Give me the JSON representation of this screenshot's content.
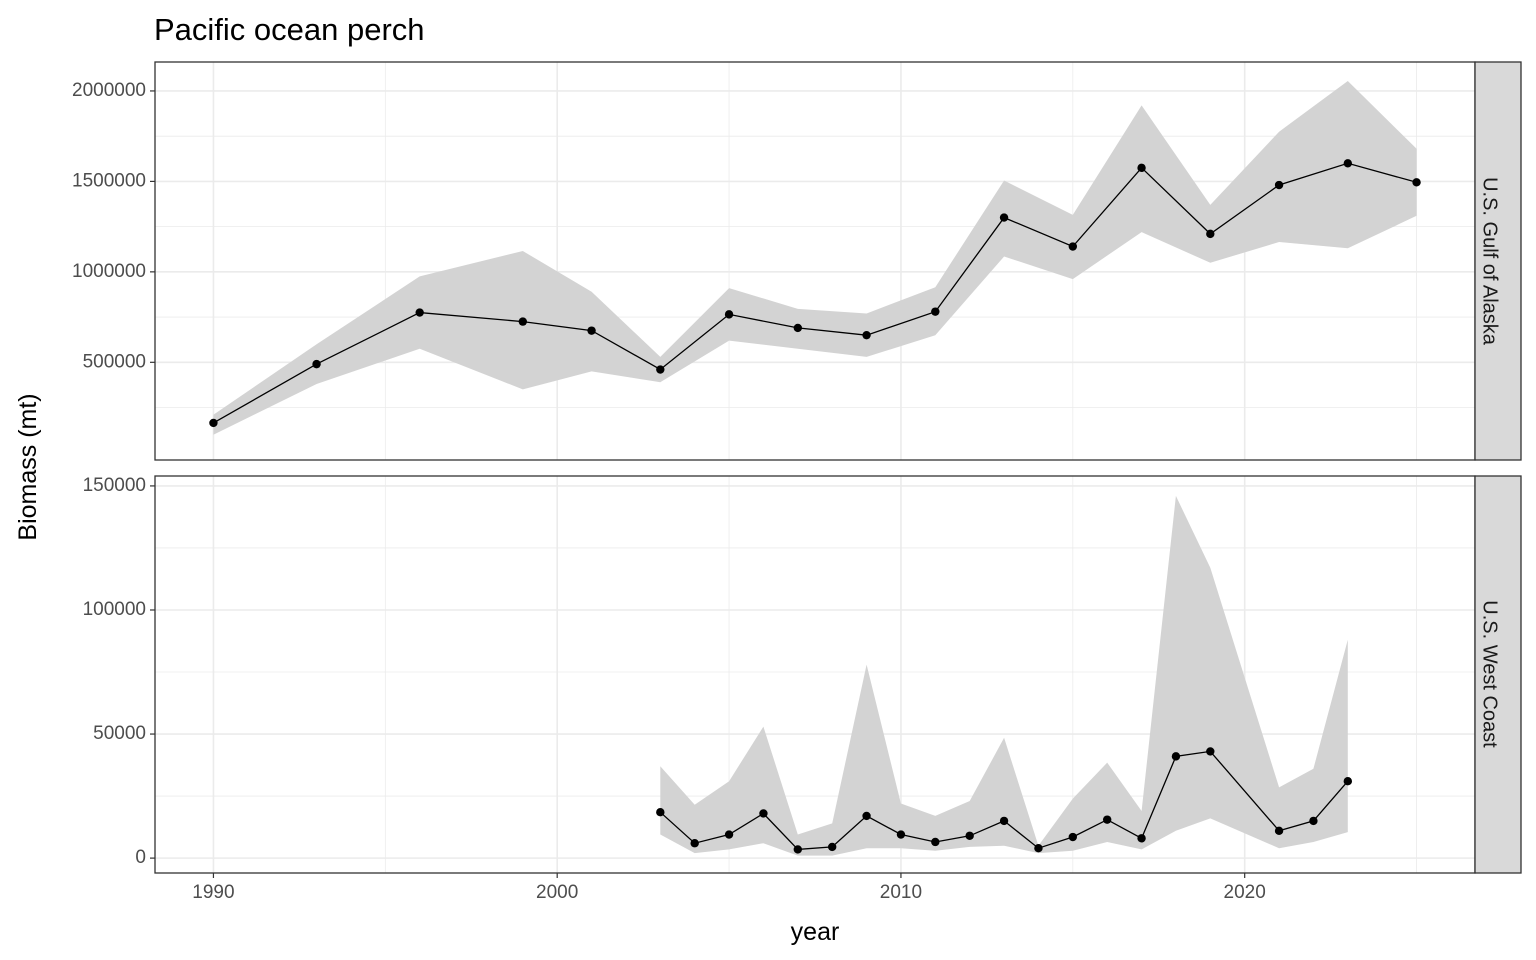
{
  "chart_data": {
    "type": "line",
    "title": "Pacific ocean perch",
    "xlabel": "year",
    "ylabel": "Biomass (mt)",
    "x_ticks": [
      1990,
      2000,
      2010,
      2020
    ],
    "xlim": [
      1988.3,
      2026.7
    ],
    "grid": true,
    "legend": "none",
    "colors": {
      "line": "#000000",
      "ribbon": "#d3d3d3",
      "strip": "#d9d9d9",
      "grid": "#ebebeb",
      "panel_border": "#333333"
    },
    "panels": [
      {
        "strip": "U.S. Gulf of Alaska",
        "ylim": [
          -40000,
          2160000
        ],
        "y_ticks": [
          500000,
          1000000,
          1500000,
          2000000
        ],
        "series": [
          {
            "x": [
              1990,
              1993,
              1996,
              1999,
              2001,
              2003,
              2005,
              2007,
              2009,
              2011,
              2013,
              2015,
              2017,
              2019,
              2021,
              2023,
              2025
            ],
            "y": [
              165000,
              490000,
              775000,
              725000,
              675000,
              460000,
              765000,
              690000,
              650000,
              780000,
              1300000,
              1140000,
              1575000,
              1210000,
              1480000,
              1600000,
              1495000
            ],
            "lower": [
              100000,
              380000,
              575000,
              350000,
              450000,
              390000,
              620000,
              575000,
              530000,
              650000,
              1085000,
              960000,
              1220000,
              1050000,
              1165000,
              1130000,
              1310000
            ],
            "upper": [
              210000,
              600000,
              975000,
              1115000,
              890000,
              530000,
              910000,
              795000,
              770000,
              915000,
              1505000,
              1315000,
              1920000,
              1370000,
              1775000,
              2055000,
              1680000
            ]
          }
        ]
      },
      {
        "strip": "U.S. West Coast",
        "ylim": [
          -6000,
          154000
        ],
        "y_ticks": [
          0,
          50000,
          100000,
          150000
        ],
        "series": [
          {
            "x": [
              2003,
              2004,
              2005,
              2006,
              2007,
              2008,
              2009,
              2010,
              2011,
              2012,
              2013,
              2014,
              2015,
              2016,
              2017,
              2018,
              2019,
              2021,
              2022,
              2023
            ],
            "y": [
              18500,
              6000,
              9500,
              18000,
              3500,
              4500,
              17000,
              9500,
              6500,
              9000,
              15000,
              4000,
              8500,
              15500,
              8000,
              41000,
              43000,
              11000,
              15000,
              31000
            ],
            "lower": [
              9500,
              2000,
              3500,
              6000,
              1000,
              1000,
              4000,
              4000,
              3000,
              4500,
              5000,
              2000,
              3000,
              6500,
              3500,
              11000,
              16000,
              4000,
              6500,
              10500
            ],
            "upper": [
              37000,
              21500,
              31000,
              53000,
              9500,
              14000,
              78000,
              22000,
              17000,
              23000,
              48500,
              5000,
              24000,
              38500,
              19000,
              146000,
              117000,
              28500,
              36000,
              88000
            ]
          }
        ]
      }
    ]
  }
}
